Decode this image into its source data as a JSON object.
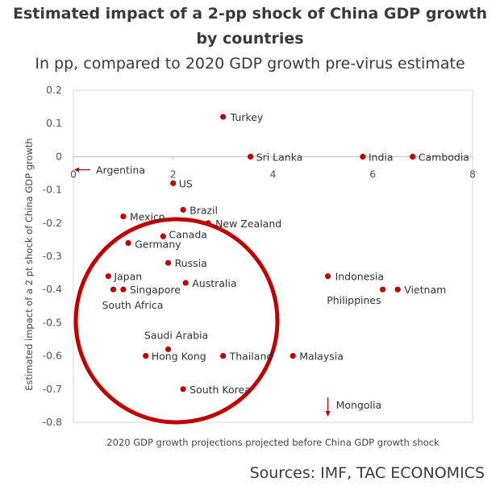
{
  "header": {
    "title_line1": "Estimated impact of a 2-pp shock of China GDP growth",
    "title_line2": "by countries",
    "subtitle": "In pp, compared to 2020 GDP growth pre-virus estimate"
  },
  "footer": {
    "source": "Sources: IMF, TAC ECONOMICS"
  },
  "chart_data": {
    "type": "scatter",
    "xlabel": "2020 GDP growth projections projected before China GDP growth shock",
    "ylabel": "Estimated impact of a 2 pt shock of China GDP growth",
    "xlim": [
      0,
      8
    ],
    "ylim": [
      -0.8,
      0.2
    ],
    "xticks": [
      "0",
      "2",
      "4",
      "6",
      "8"
    ],
    "yticks": [
      "0.2",
      "0.1",
      "0",
      "-0.1",
      "-0.2",
      "-0.3",
      "-0.4",
      "-0.5",
      "-0.6",
      "-0.7",
      "-0.8"
    ],
    "grid": false,
    "marker_color": "#c00000",
    "points": [
      {
        "label": "Turkey",
        "x": 3.0,
        "y": 0.12
      },
      {
        "label": "Sri Lanka",
        "x": 3.55,
        "y": 0.0
      },
      {
        "label": "India",
        "x": 5.8,
        "y": 0.0
      },
      {
        "label": "Cambodia",
        "x": 6.8,
        "y": 0.0
      },
      {
        "label": "US",
        "x": 2.0,
        "y": -0.08
      },
      {
        "label": "Brazil",
        "x": 2.2,
        "y": -0.16
      },
      {
        "label": "Mexico",
        "x": 1.0,
        "y": -0.18
      },
      {
        "label": "New Zealand",
        "x": 2.7,
        "y": -0.2
      },
      {
        "label": "Canada",
        "x": 1.8,
        "y": -0.24
      },
      {
        "label": "Germany",
        "x": 1.1,
        "y": -0.26
      },
      {
        "label": "Russia",
        "x": 1.9,
        "y": -0.32
      },
      {
        "label": "Japan",
        "x": 0.7,
        "y": -0.36
      },
      {
        "label": "Australia",
        "x": 2.25,
        "y": -0.38
      },
      {
        "label": "Singapore",
        "x": 1.0,
        "y": -0.4
      },
      {
        "label": "South Africa",
        "x": 0.8,
        "y": -0.4
      },
      {
        "label": "Indonesia",
        "x": 5.1,
        "y": -0.36
      },
      {
        "label": "Philippines",
        "x": 6.2,
        "y": -0.4
      },
      {
        "label": "Vietnam",
        "x": 6.5,
        "y": -0.4
      },
      {
        "label": "Saudi Arabia",
        "x": 1.9,
        "y": -0.58
      },
      {
        "label": "Hong Kong",
        "x": 1.45,
        "y": -0.6
      },
      {
        "label": "Thailand",
        "x": 3.0,
        "y": -0.6
      },
      {
        "label": "Malaysia",
        "x": 4.4,
        "y": -0.6
      },
      {
        "label": "South Korea",
        "x": 2.2,
        "y": -0.7
      }
    ],
    "offchart": [
      {
        "label": "Argentina",
        "direction": "left",
        "y": -0.02
      },
      {
        "label": "Mongolia",
        "direction": "down",
        "x": 5.1
      }
    ],
    "highlight_color": "#c00000"
  }
}
